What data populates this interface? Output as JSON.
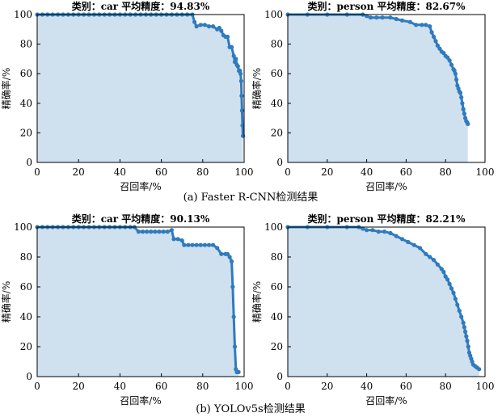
{
  "figure": {
    "caption_a": "(a) Faster R-CNN检测结果",
    "caption_b": "(b) YOLOv5s检测结果"
  },
  "colors": {
    "line": "#2f7bbd",
    "fill": "#cfe0ef",
    "axis": "#000000"
  },
  "chart_data": [
    {
      "type": "area",
      "title": "类别：car   平均精度：94.83%",
      "xlabel": "召回率/%",
      "ylabel": "精确率/%",
      "xlim": [
        0,
        100
      ],
      "ylim": [
        0,
        100
      ],
      "xticks": [
        0,
        20,
        40,
        60,
        80,
        100
      ],
      "yticks": [
        0,
        20,
        40,
        60,
        80,
        100
      ],
      "series": [
        {
          "x": [
            0,
            2.5,
            5,
            7.5,
            10,
            12.5,
            15,
            17.5,
            20,
            22.5,
            25,
            27.5,
            30,
            32.5,
            35,
            37.5,
            40,
            42.5,
            45,
            47.5,
            50,
            52.5,
            55,
            57.5,
            60,
            62.5,
            65,
            67.5,
            70,
            72.5,
            75,
            76,
            77,
            79,
            81,
            83,
            85,
            87,
            88,
            89,
            90,
            91,
            92,
            93,
            94,
            95,
            95.5,
            96,
            96.5,
            97,
            97.5,
            98,
            98.3,
            98.6,
            98.8,
            99,
            99.2,
            99.4
          ],
          "y": [
            100,
            100,
            100,
            100,
            100,
            100,
            100,
            100,
            100,
            100,
            100,
            100,
            100,
            100,
            100,
            100,
            100,
            100,
            100,
            100,
            100,
            100,
            100,
            100,
            100,
            100,
            100,
            100,
            100,
            100,
            100,
            95,
            92,
            93,
            93,
            92,
            92,
            90,
            91,
            89,
            86,
            85,
            85,
            78,
            78,
            72,
            68,
            70,
            66,
            65,
            62,
            62,
            60,
            55,
            45,
            35,
            25,
            18
          ]
        }
      ]
    },
    {
      "type": "area",
      "title": "类别：person   平均精度：82.67%",
      "xlabel": "召回率/%",
      "ylabel": "精确率/%",
      "xlim": [
        0,
        100
      ],
      "ylim": [
        0,
        100
      ],
      "xticks": [
        0,
        20,
        40,
        60,
        80,
        100
      ],
      "yticks": [
        0,
        20,
        40,
        60,
        80,
        100
      ],
      "series": [
        {
          "x": [
            0,
            10,
            20,
            30,
            38,
            40,
            42,
            45,
            48,
            52,
            55,
            58,
            62,
            65,
            68,
            70,
            72,
            73,
            74,
            75,
            76,
            77,
            78,
            79,
            80,
            81,
            82,
            83,
            84,
            84.5,
            85,
            85.5,
            86,
            86.5,
            87,
            87.5,
            88,
            88.5,
            89,
            89.5,
            90,
            90.5,
            91,
            91.3
          ],
          "y": [
            100,
            100,
            100,
            100,
            100,
            99,
            98,
            98,
            98,
            98,
            97,
            96,
            95,
            93,
            93,
            93,
            92,
            88,
            85,
            82,
            79,
            77,
            75,
            74,
            72,
            71,
            69,
            66,
            63,
            62,
            60,
            56,
            52,
            50,
            48,
            47,
            44,
            40,
            36,
            33,
            30,
            28,
            27,
            26
          ]
        }
      ]
    },
    {
      "type": "area",
      "title": "类别：car   平均精度：90.13%",
      "xlabel": "召回率/%",
      "ylabel": "精确率/%",
      "xlim": [
        0,
        100
      ],
      "ylim": [
        0,
        100
      ],
      "xticks": [
        0,
        20,
        40,
        60,
        80,
        100
      ],
      "yticks": [
        0,
        20,
        40,
        60,
        80,
        100
      ],
      "series": [
        {
          "x": [
            0,
            2.5,
            5,
            7.5,
            10,
            12.5,
            15,
            17.5,
            20,
            22.5,
            25,
            27.5,
            30,
            32.5,
            35,
            37.5,
            40,
            42.5,
            45,
            47,
            49,
            51,
            53,
            55,
            57,
            59,
            61,
            63,
            65,
            66,
            68,
            70,
            71,
            73,
            75,
            77,
            79,
            81,
            83,
            85,
            87,
            89,
            91,
            92,
            93,
            94,
            94.5,
            95,
            95.5,
            96,
            96.5,
            97,
            97.3
          ],
          "y": [
            100,
            100,
            100,
            100,
            100,
            100,
            100,
            100,
            100,
            100,
            100,
            100,
            100,
            100,
            100,
            100,
            100,
            100,
            100,
            100,
            97,
            97,
            97,
            97,
            97,
            97,
            97,
            97,
            98,
            92,
            92,
            91,
            88,
            88,
            88,
            88,
            88,
            88,
            88,
            88,
            86,
            82,
            82,
            82,
            80,
            77,
            60,
            40,
            20,
            5,
            3,
            3,
            3
          ]
        }
      ]
    },
    {
      "type": "area",
      "title": "类别：person   平均精度：82.21%",
      "xlabel": "召回率/%",
      "ylabel": "精确率/%",
      "xlim": [
        0,
        100
      ],
      "ylim": [
        0,
        100
      ],
      "xticks": [
        0,
        20,
        40,
        60,
        80,
        100
      ],
      "yticks": [
        0,
        20,
        40,
        60,
        80,
        100
      ],
      "series": [
        {
          "x": [
            0,
            10,
            20,
            30,
            36,
            38,
            40,
            43,
            46,
            49,
            52,
            55,
            58,
            61,
            64,
            67,
            70,
            72,
            74,
            76,
            78,
            79,
            80,
            81,
            82,
            83,
            84,
            85,
            86,
            87,
            88,
            89,
            89.5,
            90,
            90.5,
            91,
            91.5,
            92,
            92.5,
            93,
            93.5,
            94,
            95,
            96,
            97
          ],
          "y": [
            100,
            100,
            100,
            100,
            100,
            99,
            98,
            98,
            97,
            97,
            96,
            94,
            92,
            90,
            88,
            86,
            82,
            80,
            78,
            75,
            72,
            70,
            67,
            65,
            62,
            59,
            56,
            52,
            48,
            44,
            40,
            36,
            33,
            30,
            27,
            24,
            20,
            16,
            14,
            12,
            10,
            8,
            7,
            6,
            5
          ]
        }
      ]
    }
  ]
}
